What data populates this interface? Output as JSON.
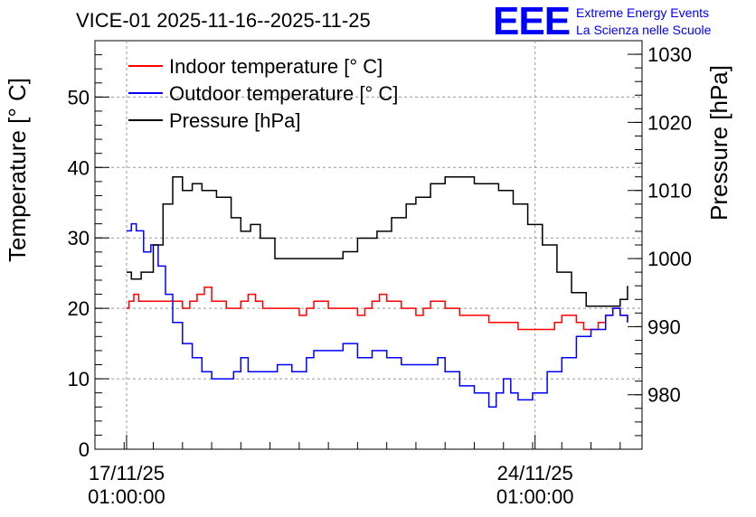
{
  "chart_data": {
    "type": "line",
    "title": "VICE-01 2025-11-16--2025-11-25",
    "ylabel": "Temperature [° C]",
    "y2label": "Pressure [hPa]",
    "ylim": [
      0,
      58
    ],
    "y2lim": [
      972,
      1032
    ],
    "xlim": [
      "2025-11-16T12:00",
      "2025-11-25T21:00"
    ],
    "grid": true,
    "legend_position": "top-left",
    "xticks": [
      {
        "date": "2025-11-17T01:00",
        "line1": "17/11/25",
        "line2": "01:00:00"
      },
      {
        "date": "2025-11-24T01:00",
        "line1": "24/11/25",
        "line2": "01:00:00"
      }
    ],
    "yticks": [
      "0",
      "10",
      "20",
      "30",
      "40",
      "50"
    ],
    "y2ticks": [
      "980",
      "990",
      "1000",
      "1010",
      "1020",
      "1030"
    ],
    "series": [
      {
        "name": "Indoor temperature [° C]",
        "color": "#ff0000",
        "axis": "left",
        "points": [
          [
            "2025-11-17T01:00",
            20
          ],
          [
            "2025-11-17T02:00",
            21
          ],
          [
            "2025-11-17T04:00",
            22
          ],
          [
            "2025-11-17T06:00",
            21
          ],
          [
            "2025-11-17T12:00",
            21
          ],
          [
            "2025-11-18T00:00",
            20
          ],
          [
            "2025-11-18T03:00",
            21
          ],
          [
            "2025-11-18T06:00",
            22
          ],
          [
            "2025-11-18T09:00",
            23
          ],
          [
            "2025-11-18T12:00",
            21
          ],
          [
            "2025-11-18T18:00",
            20
          ],
          [
            "2025-11-19T00:00",
            21
          ],
          [
            "2025-11-19T03:00",
            22
          ],
          [
            "2025-11-19T06:00",
            21
          ],
          [
            "2025-11-19T09:00",
            20
          ],
          [
            "2025-11-20T00:00",
            19
          ],
          [
            "2025-11-20T03:00",
            20
          ],
          [
            "2025-11-20T06:00",
            21
          ],
          [
            "2025-11-20T12:00",
            20
          ],
          [
            "2025-11-21T00:00",
            19
          ],
          [
            "2025-11-21T03:00",
            20
          ],
          [
            "2025-11-21T06:00",
            21
          ],
          [
            "2025-11-21T09:00",
            22
          ],
          [
            "2025-11-21T12:00",
            21
          ],
          [
            "2025-11-21T18:00",
            20
          ],
          [
            "2025-11-22T00:00",
            19
          ],
          [
            "2025-11-22T03:00",
            20
          ],
          [
            "2025-11-22T06:00",
            21
          ],
          [
            "2025-11-22T12:00",
            20
          ],
          [
            "2025-11-22T18:00",
            19
          ],
          [
            "2025-11-23T06:00",
            18
          ],
          [
            "2025-11-23T12:00",
            18
          ],
          [
            "2025-11-23T18:00",
            17
          ],
          [
            "2025-11-24T06:00",
            17
          ],
          [
            "2025-11-24T09:00",
            18
          ],
          [
            "2025-11-24T12:00",
            19
          ],
          [
            "2025-11-24T18:00",
            18
          ],
          [
            "2025-11-24T21:00",
            17
          ],
          [
            "2025-11-25T03:00",
            18
          ],
          [
            "2025-11-25T06:00",
            19
          ],
          [
            "2025-11-25T09:00",
            20
          ],
          [
            "2025-11-25T12:00",
            19
          ],
          [
            "2025-11-25T15:00",
            18
          ]
        ]
      },
      {
        "name": "Outdoor temperature [° C]",
        "color": "#0000ff",
        "axis": "left",
        "points": [
          [
            "2025-11-17T01:00",
            31
          ],
          [
            "2025-11-17T03:00",
            32
          ],
          [
            "2025-11-17T05:00",
            31
          ],
          [
            "2025-11-17T08:00",
            28
          ],
          [
            "2025-11-17T11:00",
            29
          ],
          [
            "2025-11-17T14:00",
            26
          ],
          [
            "2025-11-17T17:00",
            22
          ],
          [
            "2025-11-17T20:00",
            18
          ],
          [
            "2025-11-18T00:00",
            15
          ],
          [
            "2025-11-18T04:00",
            13
          ],
          [
            "2025-11-18T08:00",
            11
          ],
          [
            "2025-11-18T12:00",
            10
          ],
          [
            "2025-11-18T18:00",
            10
          ],
          [
            "2025-11-18T21:00",
            11
          ],
          [
            "2025-11-19T00:00",
            13
          ],
          [
            "2025-11-19T03:00",
            11
          ],
          [
            "2025-11-19T09:00",
            11
          ],
          [
            "2025-11-19T15:00",
            12
          ],
          [
            "2025-11-19T21:00",
            11
          ],
          [
            "2025-11-20T03:00",
            13
          ],
          [
            "2025-11-20T06:00",
            14
          ],
          [
            "2025-11-20T12:00",
            14
          ],
          [
            "2025-11-20T18:00",
            15
          ],
          [
            "2025-11-21T00:00",
            13
          ],
          [
            "2025-11-21T06:00",
            14
          ],
          [
            "2025-11-21T12:00",
            13
          ],
          [
            "2025-11-21T18:00",
            12
          ],
          [
            "2025-11-22T06:00",
            12
          ],
          [
            "2025-11-22T09:00",
            13
          ],
          [
            "2025-11-22T12:00",
            11
          ],
          [
            "2025-11-22T18:00",
            9
          ],
          [
            "2025-11-23T00:00",
            8
          ],
          [
            "2025-11-23T06:00",
            6
          ],
          [
            "2025-11-23T09:00",
            8
          ],
          [
            "2025-11-23T12:00",
            10
          ],
          [
            "2025-11-23T15:00",
            8
          ],
          [
            "2025-11-23T18:00",
            7
          ],
          [
            "2025-11-24T00:00",
            8
          ],
          [
            "2025-11-24T06:00",
            11
          ],
          [
            "2025-11-24T12:00",
            13
          ],
          [
            "2025-11-24T18:00",
            16
          ],
          [
            "2025-11-25T00:00",
            17
          ],
          [
            "2025-11-25T06:00",
            19
          ],
          [
            "2025-11-25T09:00",
            20
          ],
          [
            "2025-11-25T12:00",
            19
          ],
          [
            "2025-11-25T15:00",
            18
          ]
        ]
      },
      {
        "name": "Pressure [hPa]",
        "color": "#000000",
        "axis": "right",
        "points": [
          [
            "2025-11-17T01:00",
            998
          ],
          [
            "2025-11-17T03:00",
            997
          ],
          [
            "2025-11-17T07:00",
            998
          ],
          [
            "2025-11-17T12:00",
            1002
          ],
          [
            "2025-11-17T16:00",
            1008
          ],
          [
            "2025-11-17T20:00",
            1012
          ],
          [
            "2025-11-18T00:00",
            1010
          ],
          [
            "2025-11-18T04:00",
            1011
          ],
          [
            "2025-11-18T08:00",
            1010
          ],
          [
            "2025-11-18T14:00",
            1009
          ],
          [
            "2025-11-18T20:00",
            1006
          ],
          [
            "2025-11-19T00:00",
            1004
          ],
          [
            "2025-11-19T04:00",
            1005
          ],
          [
            "2025-11-19T08:00",
            1003
          ],
          [
            "2025-11-19T14:00",
            1000
          ],
          [
            "2025-11-20T00:00",
            1000
          ],
          [
            "2025-11-20T06:00",
            1000
          ],
          [
            "2025-11-20T12:00",
            1000
          ],
          [
            "2025-11-20T18:00",
            1001
          ],
          [
            "2025-11-21T00:00",
            1003
          ],
          [
            "2025-11-21T08:00",
            1004
          ],
          [
            "2025-11-21T14:00",
            1006
          ],
          [
            "2025-11-21T20:00",
            1008
          ],
          [
            "2025-11-22T00:00",
            1009
          ],
          [
            "2025-11-22T06:00",
            1011
          ],
          [
            "2025-11-22T12:00",
            1012
          ],
          [
            "2025-11-22T18:00",
            1012
          ],
          [
            "2025-11-23T00:00",
            1011
          ],
          [
            "2025-11-23T06:00",
            1011
          ],
          [
            "2025-11-23T10:00",
            1010
          ],
          [
            "2025-11-23T16:00",
            1008
          ],
          [
            "2025-11-23T22:00",
            1005
          ],
          [
            "2025-11-24T04:00",
            1002
          ],
          [
            "2025-11-24T10:00",
            998
          ],
          [
            "2025-11-24T16:00",
            995
          ],
          [
            "2025-11-24T22:00",
            993
          ],
          [
            "2025-11-25T06:00",
            993
          ],
          [
            "2025-11-25T12:00",
            994
          ],
          [
            "2025-11-25T15:00",
            996
          ]
        ]
      }
    ]
  },
  "logo": {
    "text": "EEE",
    "line1": "Extreme Energy Events",
    "line2": "La Scienza nelle Scuole",
    "color": "#0000ff"
  }
}
